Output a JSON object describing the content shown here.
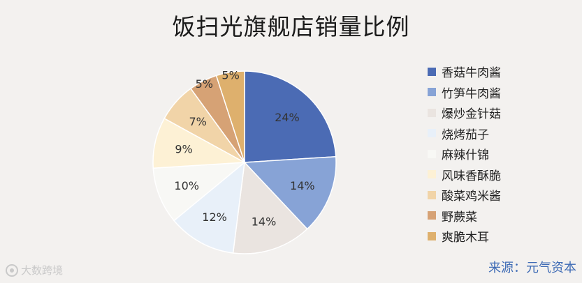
{
  "chart_data": {
    "type": "pie",
    "title": "饭扫光旗舰店销量比例",
    "categories": [
      "香菇牛肉酱",
      "竹笋牛肉酱",
      "爆炒金针菇",
      "烧烤茄子",
      "麻辣什锦",
      "风味香酥脆",
      "酸菜鸡米酱",
      "野蕨菜",
      "爽脆木耳"
    ],
    "values": [
      24,
      14,
      14,
      12,
      10,
      9,
      7,
      5,
      5
    ],
    "labels": [
      "24%",
      "14%",
      "14%",
      "12%",
      "10%",
      "9%",
      "7%",
      "5%",
      "5%"
    ],
    "colors": [
      "#4b6bb4",
      "#87a3d6",
      "#eae4e0",
      "#e8f0f9",
      "#f8f8f5",
      "#fdf1d5",
      "#f1d4a8",
      "#d6a275",
      "#deb06d"
    ],
    "legend": "right"
  },
  "source": "来源：元气资本",
  "watermark": "大数跨境"
}
